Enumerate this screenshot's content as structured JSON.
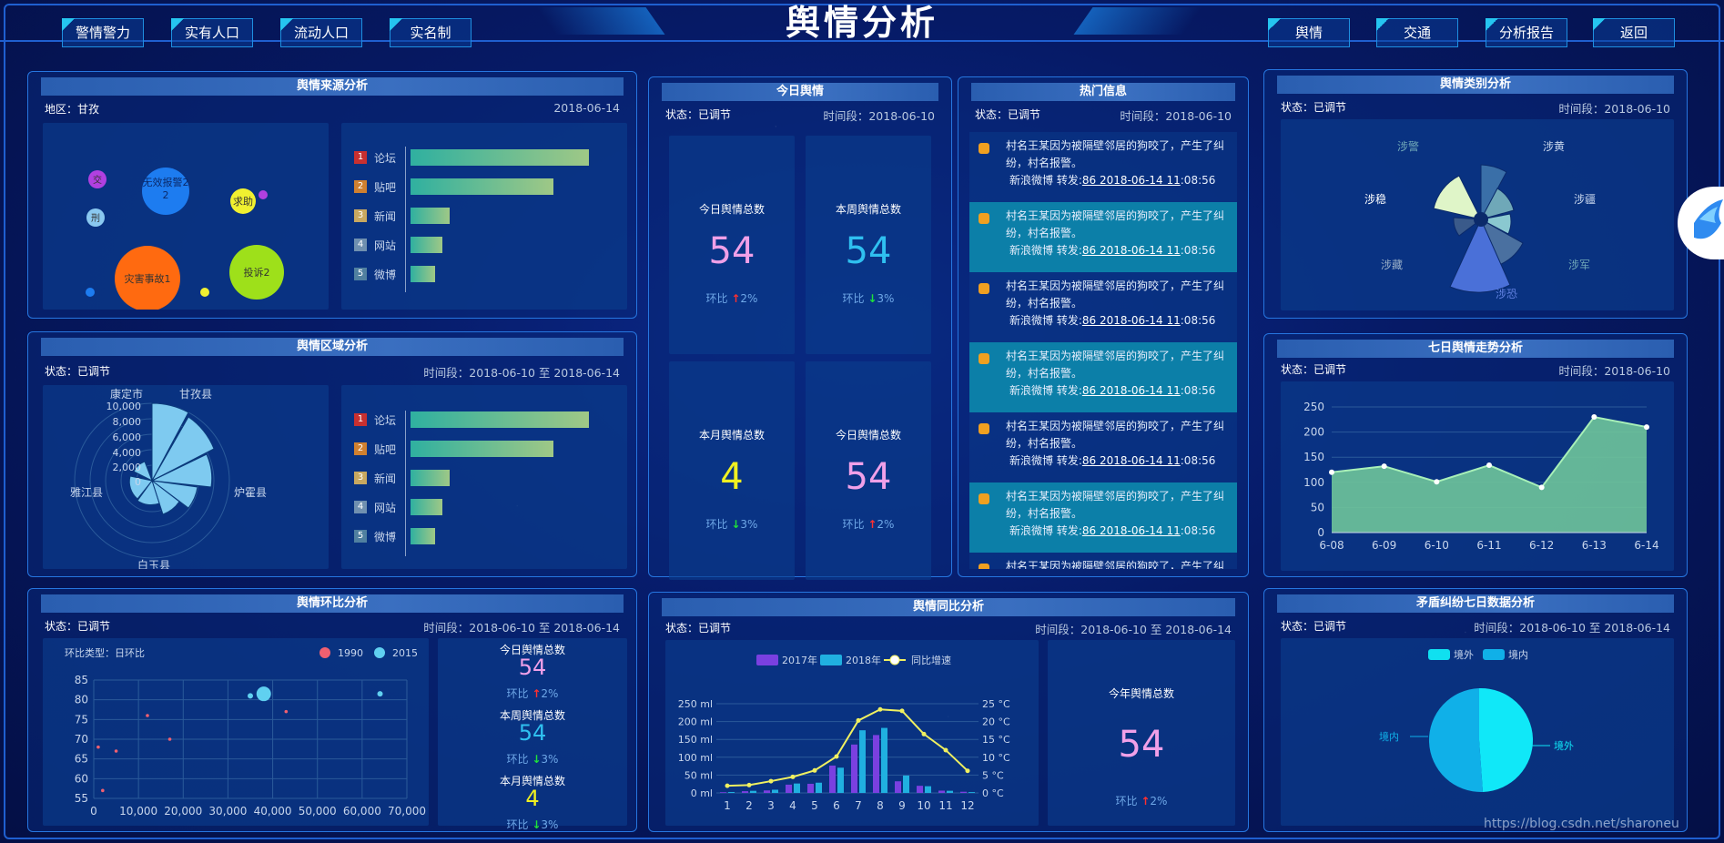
{
  "header": {
    "title": "舆情分析",
    "nav_left": [
      "警情警力",
      "实有人口",
      "流动人口",
      "实名制"
    ],
    "nav_right": [
      "舆情",
      "交通",
      "分析报告",
      "返回"
    ]
  },
  "source_panel": {
    "title": "舆情来源分析",
    "region": "地区：甘孜",
    "date": "2018-06-14",
    "bubbles": [
      "无效报警2",
      "求助",
      "灾害事故1",
      "投诉2",
      "刑",
      "交"
    ],
    "rank": [
      {
        "rank": "1",
        "label": "论坛",
        "value": 10
      },
      {
        "rank": "2",
        "label": "贴吧",
        "value": 8
      },
      {
        "rank": "3",
        "label": "新闻",
        "value": 2.2
      },
      {
        "rank": "4",
        "label": "网站",
        "value": 1.8
      },
      {
        "rank": "5",
        "label": "微博",
        "value": 1.4
      }
    ]
  },
  "region_panel": {
    "title": "舆情区域分析",
    "status": "状态：已调节",
    "date": "时间段：2018-06-10 至 2018-06-14",
    "polar_ticks": [
      "10,000",
      "8,000",
      "6,000",
      "4,000",
      "2,000",
      "0"
    ],
    "regions": [
      "康定市",
      "甘孜县",
      "炉霍县",
      "白玉县",
      "雅江县"
    ],
    "rank": [
      {
        "rank": "1",
        "label": "论坛",
        "value": 10
      },
      {
        "rank": "2",
        "label": "贴吧",
        "value": 8
      },
      {
        "rank": "3",
        "label": "新闻",
        "value": 2.2
      },
      {
        "rank": "4",
        "label": "网站",
        "value": 1.8
      },
      {
        "rank": "5",
        "label": "微博",
        "value": 1.4
      }
    ]
  },
  "ring_panel": {
    "title": "舆情环比分析",
    "status": "状态：已调节",
    "date": "时间段：2018-06-10 至 2018-06-14",
    "scatter_label": "环比类型：日环比",
    "legend": [
      "1990",
      "2015"
    ],
    "stats": [
      {
        "title": "今日舆情总数",
        "value": "54",
        "ring": "环比",
        "pct": "2%",
        "dir": "up",
        "color": "#f0a0e8"
      },
      {
        "title": "本周舆情总数",
        "value": "54",
        "ring": "环比",
        "pct": "3%",
        "dir": "down",
        "color": "#2fc0f0"
      },
      {
        "title": "本月舆情总数",
        "value": "4",
        "ring": "环比",
        "pct": "3%",
        "dir": "down",
        "color": "#f0f020"
      }
    ]
  },
  "today_panel": {
    "title": "今日舆情",
    "status": "状态：已调节",
    "date": "时间段：2018-06-10",
    "cells": [
      {
        "title": "今日舆情总数",
        "value": "54",
        "ring": "环比",
        "pct": "2%",
        "dir": "up",
        "color": "#f0a0e8"
      },
      {
        "title": "本周舆情总数",
        "value": "54",
        "ring": "环比",
        "pct": "3%",
        "dir": "down",
        "color": "#2fc0f0"
      },
      {
        "title": "本月舆情总数",
        "value": "4",
        "ring": "环比",
        "pct": "3%",
        "dir": "down",
        "color": "#f0f020"
      },
      {
        "title": "今日舆情总数",
        "value": "54",
        "ring": "环比",
        "pct": "2%",
        "dir": "up",
        "color": "#f0a0e8"
      }
    ]
  },
  "hot_panel": {
    "title": "热门信息",
    "status": "状态：已调节",
    "date": "时间段：2018-06-10",
    "item_text": "村名王某因为被隔壁邻居的狗咬了，产生了纠纷，村名报警。",
    "meta_prefix": "新浪微博 转发:",
    "meta_link": "86 2018-06-14 11",
    "meta_suffix": ":08:56",
    "count": 6
  },
  "category_panel": {
    "title": "舆情类别分析",
    "status": "状态：已调节",
    "date": "时间段：2018-06-10",
    "labels": [
      "涉警",
      "涉黄",
      "涉稳",
      "涉疆",
      "涉藏",
      "涉军",
      "涉恐"
    ]
  },
  "trend_panel": {
    "title": "七日舆情走势分析",
    "status": "状态：已调节",
    "date": "时间段：2018-06-10"
  },
  "yoy_panel": {
    "title": "舆情同比分析",
    "status": "状态：已调节",
    "date": "时间段：2018-06-10 至 2018-06-14",
    "legend": [
      "2017年",
      "2018年",
      "同比增速"
    ],
    "year_title": "今年舆情总数",
    "year_value": "54",
    "year_ring": "环比",
    "year_pct": "2%"
  },
  "conflict_panel": {
    "title": "矛盾纠纷七日数据分析",
    "status": "状态：已调节",
    "date": "时间段：2018-06-10 至 2018-06-14",
    "legend": [
      "境外",
      "境内"
    ]
  },
  "watermark": "https://blog.csdn.net/sharoneu",
  "chart_data": [
    {
      "type": "line",
      "title": "七日舆情走势分析",
      "categories": [
        "6-08",
        "6-09",
        "6-10",
        "6-11",
        "6-12",
        "6-13",
        "6-14"
      ],
      "values": [
        120,
        132,
        101,
        134,
        90,
        230,
        210
      ],
      "ylim": [
        0,
        250
      ],
      "yticks": [
        0,
        50,
        100,
        150,
        200,
        250
      ]
    },
    {
      "type": "bar",
      "title": "舆情同比分析",
      "categories": [
        "1",
        "2",
        "3",
        "4",
        "5",
        "6",
        "7",
        "8",
        "9",
        "10",
        "11",
        "12"
      ],
      "series": [
        {
          "name": "2017年",
          "values": [
            2.0,
            4.9,
            7.0,
            23.2,
            25.6,
            76.7,
            135.6,
            162.2,
            32.6,
            20.0,
            6.4,
            3.3
          ]
        },
        {
          "name": "2018年",
          "values": [
            2.6,
            5.9,
            9.0,
            26.4,
            28.7,
            70.7,
            175.6,
            182.2,
            48.7,
            18.8,
            6.0,
            2.3
          ]
        },
        {
          "name": "同比增速",
          "values": [
            2.0,
            2.2,
            3.3,
            4.5,
            6.3,
            10.2,
            20.3,
            23.4,
            23.0,
            16.5,
            12.0,
            6.2
          ]
        }
      ],
      "yleft_ticks": [
        "0 ml",
        "50 ml",
        "100 ml",
        "150 ml",
        "200 ml",
        "250 ml"
      ],
      "yright_ticks": [
        "0 °C",
        "5 °C",
        "10 °C",
        "15 °C",
        "20 °C",
        "25 °C"
      ],
      "ylim": [
        0,
        250
      ],
      "ylim_right": [
        0,
        25
      ]
    },
    {
      "type": "scatter",
      "title": "舆情环比分析",
      "xticks": [
        "0",
        "10,000",
        "20,000",
        "30,000",
        "40,000",
        "50,000",
        "60,000",
        "70,000"
      ],
      "yticks": [
        "55",
        "60",
        "65",
        "70",
        "75",
        "80",
        "85"
      ],
      "xlim": [
        0,
        70000
      ],
      "ylim": [
        55,
        85
      ],
      "series": [
        {
          "name": "1990",
          "points": [
            [
              1000,
              68
            ],
            [
              2000,
              57
            ],
            [
              5000,
              67
            ],
            [
              12000,
              76
            ],
            [
              17000,
              70
            ],
            [
              37000,
              82
            ],
            [
              43000,
              77
            ]
          ]
        },
        {
          "name": "2015",
          "points": [
            [
              35000,
              81
            ],
            [
              38000,
              81.5
            ],
            [
              64000,
              81.5
            ]
          ]
        }
      ]
    },
    {
      "type": "pie",
      "title": "矛盾纠纷七日数据分析",
      "categories": [
        "境外",
        "境内"
      ],
      "values": [
        50,
        50
      ]
    },
    {
      "type": "pie",
      "title": "舆情类别分析",
      "categories": [
        "涉警",
        "涉黄",
        "涉稳",
        "涉疆",
        "涉藏",
        "涉军",
        "涉恐"
      ],
      "values": [
        20,
        15,
        25,
        10,
        18,
        22,
        40
      ]
    }
  ]
}
